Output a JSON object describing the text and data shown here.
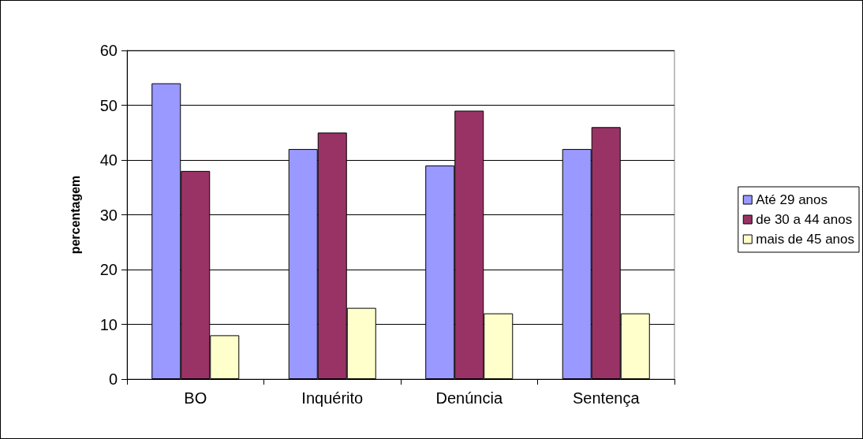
{
  "chart_data": {
    "type": "bar",
    "ylabel": "percentagem",
    "categories": [
      "BO",
      "Inquérito",
      "Denúncia",
      "Sentença"
    ],
    "series": [
      {
        "name": "Até 29 anos",
        "color": "#9999ff",
        "values": [
          54,
          42,
          39,
          42
        ]
      },
      {
        "name": "de 30 a 44 anos",
        "color": "#993366",
        "values": [
          38,
          45,
          49,
          46
        ]
      },
      {
        "name": "mais de 45 anos",
        "color": "#ffffcc",
        "values": [
          8,
          13,
          12,
          12
        ]
      }
    ],
    "ylim": [
      0,
      60
    ],
    "yticks": [
      0,
      10,
      20,
      30,
      40,
      50,
      60
    ],
    "grid": "y",
    "legend": "right"
  }
}
